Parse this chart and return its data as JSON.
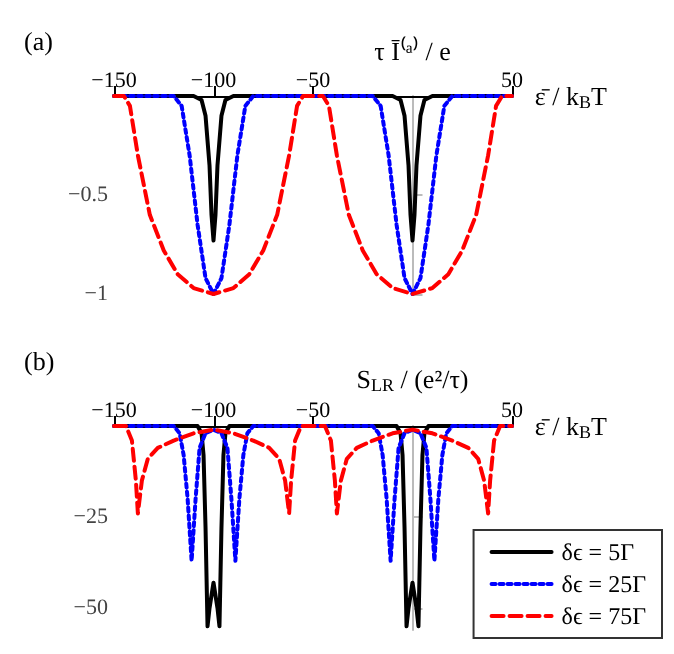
{
  "chart_data": [
    {
      "type": "line",
      "ylabel": "τ Ī⁽ᵃ⁾ / e",
      "xlabel": "ε̄ / k$_{B}$T",
      "annotations": [
        "(a)"
      ],
      "legend": false,
      "xlim": [
        -150,
        50
      ],
      "xticks": [
        -150,
        -100,
        -50,
        50
      ],
      "ylim": [
        -1,
        0
      ],
      "yticks": [
        -0.5,
        -1
      ],
      "series": [
        {
          "color": "#000000",
          "line_style": "solid",
          "x": [
            -150,
            -110,
            -106,
            -104,
            -102,
            -101,
            -100,
            -99,
            -98,
            -96,
            -94,
            -90,
            -10,
            -6,
            -4,
            -2,
            -1,
            0,
            1,
            2,
            4,
            6,
            10,
            50
          ],
          "values": [
            0,
            0,
            -0.02,
            -0.1,
            -0.35,
            -0.6,
            -0.73,
            -0.6,
            -0.35,
            -0.1,
            -0.02,
            0,
            0,
            -0.02,
            -0.1,
            -0.35,
            -0.6,
            -0.73,
            -0.6,
            -0.35,
            -0.1,
            -0.02,
            0,
            0
          ]
        },
        {
          "color": "#0000ff",
          "line_style": "dotted",
          "x": [
            -150,
            -120,
            -116,
            -112,
            -108,
            -104,
            -100,
            -96,
            -92,
            -88,
            -84,
            -80,
            -20,
            -16,
            -12,
            -8,
            -4,
            0,
            4,
            8,
            12,
            16,
            20,
            50
          ],
          "values": [
            0,
            0,
            -0.05,
            -0.3,
            -0.65,
            -0.92,
            -1,
            -0.92,
            -0.65,
            -0.3,
            -0.05,
            0,
            0,
            -0.05,
            -0.3,
            -0.65,
            -0.92,
            -1,
            -0.92,
            -0.65,
            -0.3,
            -0.05,
            0,
            0
          ]
        },
        {
          "color": "#ff0000",
          "line_style": "dashed",
          "x": [
            -150,
            -145,
            -142,
            -138,
            -132,
            -125,
            -118,
            -110,
            -100,
            -90,
            -82,
            -75,
            -68,
            -62,
            -58,
            -55,
            -45,
            -42,
            -38,
            -32,
            -25,
            -18,
            -10,
            0,
            10,
            18,
            25,
            32,
            38,
            42,
            45,
            50
          ],
          "values": [
            0,
            0,
            -0.05,
            -0.3,
            -0.6,
            -0.78,
            -0.9,
            -0.97,
            -1,
            -0.97,
            -0.9,
            -0.78,
            -0.6,
            -0.3,
            -0.05,
            0,
            0,
            -0.05,
            -0.3,
            -0.6,
            -0.78,
            -0.9,
            -0.97,
            -1,
            -0.97,
            -0.9,
            -0.78,
            -0.6,
            -0.3,
            -0.05,
            0,
            0
          ]
        }
      ]
    },
    {
      "type": "line",
      "ylabel": "S$_{LR}$ / (e²/τ)",
      "xlabel": "ε̄ / k$_{B}$T",
      "annotations": [
        "(b)"
      ],
      "legend": "bottom right",
      "xlim": [
        -150,
        50
      ],
      "xticks": [
        -150,
        -100,
        -50,
        50
      ],
      "ylim": [
        -56,
        0
      ],
      "yticks": [
        -25,
        -50
      ],
      "series": [
        {
          "name": "δϵ = 5Γ",
          "color": "#000000",
          "line_style": "solid",
          "x": [
            -150,
            -108,
            -106,
            -105,
            -104,
            -103,
            -102,
            -100,
            -98,
            -97,
            -96,
            -95,
            -94,
            -92,
            -8,
            -6,
            -5,
            -4,
            -3,
            -2,
            0,
            2,
            3,
            4,
            5,
            6,
            8,
            50
          ],
          "values": [
            0,
            0,
            -2,
            -8,
            -28,
            -55,
            -50,
            -43,
            -50,
            -55,
            -28,
            -8,
            -2,
            0,
            0,
            -2,
            -8,
            -28,
            -55,
            -50,
            -43,
            -50,
            -55,
            -28,
            -8,
            -2,
            0,
            0
          ]
        },
        {
          "name": "δϵ = 25Γ",
          "color": "#0000ff",
          "line_style": "dotted",
          "x": [
            -150,
            -120,
            -117,
            -115,
            -113,
            -111,
            -109,
            -107,
            -104,
            -100,
            -96,
            -93,
            -91,
            -89,
            -87,
            -85,
            -83,
            -80,
            -20,
            -17,
            -15,
            -13,
            -11,
            -9,
            -7,
            -4,
            0,
            4,
            7,
            9,
            11,
            13,
            15,
            17,
            20,
            50
          ],
          "values": [
            0,
            0,
            -2,
            -8,
            -20,
            -37,
            -20,
            -6,
            -2,
            -1,
            -2,
            -6,
            -20,
            -37,
            -20,
            -8,
            -2,
            0,
            0,
            -2,
            -8,
            -20,
            -37,
            -20,
            -6,
            -2,
            -1,
            -2,
            -6,
            -20,
            -37,
            -20,
            -8,
            -2,
            0,
            0
          ]
        },
        {
          "name": "δϵ = 75Γ",
          "color": "#ff0000",
          "line_style": "dashed",
          "x": [
            -150,
            -144,
            -141,
            -139,
            -138,
            -136,
            -133,
            -128,
            -120,
            -110,
            -100,
            -90,
            -80,
            -72,
            -67,
            -64,
            -62,
            -61,
            -59,
            -56,
            -44,
            -41,
            -39,
            -38,
            -36,
            -33,
            -28,
            -20,
            -10,
            0,
            10,
            20,
            28,
            33,
            36,
            38,
            39,
            41,
            44,
            50
          ],
          "values": [
            0,
            0,
            -4,
            -15,
            -24,
            -15,
            -9,
            -6,
            -4,
            -2,
            -1,
            -2,
            -4,
            -6,
            -9,
            -15,
            -24,
            -15,
            -4,
            0,
            0,
            -4,
            -15,
            -24,
            -15,
            -9,
            -6,
            -4,
            -2,
            -1,
            -2,
            -4,
            -6,
            -9,
            -15,
            -24,
            -15,
            -4,
            0,
            0
          ]
        }
      ]
    }
  ]
}
